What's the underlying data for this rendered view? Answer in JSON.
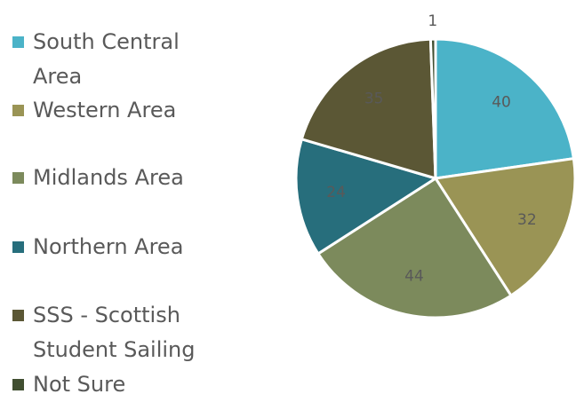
{
  "chart_data": {
    "type": "pie",
    "categories": [
      "South Central Area",
      "Western Area",
      "Midlands Area",
      "Northern Area",
      "SSS - Scottish Student Sailing",
      "Not Sure"
    ],
    "values": [
      40,
      32,
      44,
      24,
      35,
      1
    ],
    "colors": [
      "#4bb3c8",
      "#9a9455",
      "#7c8a5c",
      "#276e7c",
      "#5b5735",
      "#414f31"
    ]
  }
}
